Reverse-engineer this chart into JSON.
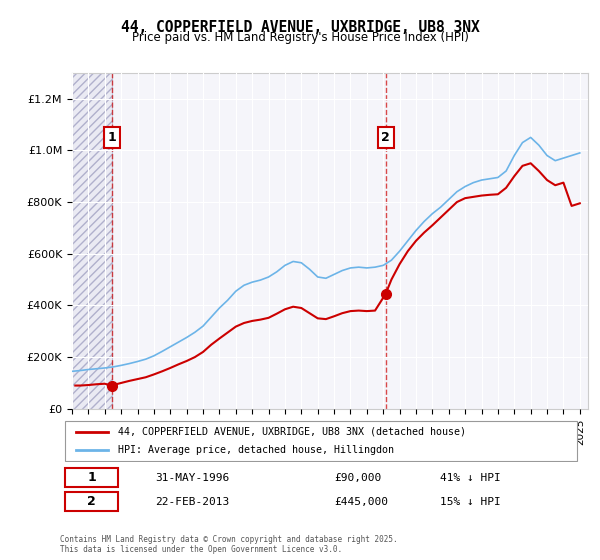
{
  "title": "44, COPPERFIELD AVENUE, UXBRIDGE, UB8 3NX",
  "subtitle": "Price paid vs. HM Land Registry's House Price Index (HPI)",
  "hpi_label": "HPI: Average price, detached house, Hillingdon",
  "property_label": "44, COPPERFIELD AVENUE, UXBRIDGE, UB8 3NX (detached house)",
  "transaction1": {
    "date": "31-MAY-1996",
    "price": 90000,
    "hpi_diff": "41% ↓ HPI"
  },
  "transaction2": {
    "date": "22-FEB-2013",
    "price": 445000,
    "hpi_diff": "15% ↓ HPI"
  },
  "hpi_color": "#6cb4e8",
  "price_color": "#cc0000",
  "dashed_line_color": "#cc0000",
  "annotation_box_color": "#cc0000",
  "background_plot": "#f0f0f8",
  "hatch_region_color": "#d8d8e8",
  "copyright_text": "Contains HM Land Registry data © Crown copyright and database right 2025.\nThis data is licensed under the Open Government Licence v3.0.",
  "ylim": [
    0,
    1300000
  ],
  "xlim_start": 1994.0,
  "xlim_end": 2025.5,
  "hpi_years": [
    1994.0,
    1994.5,
    1995.0,
    1995.5,
    1996.0,
    1996.5,
    1997.0,
    1997.5,
    1998.0,
    1998.5,
    1999.0,
    1999.5,
    2000.0,
    2000.5,
    2001.0,
    2001.5,
    2002.0,
    2002.5,
    2003.0,
    2003.5,
    2004.0,
    2004.5,
    2005.0,
    2005.5,
    2006.0,
    2006.5,
    2007.0,
    2007.5,
    2008.0,
    2008.5,
    2009.0,
    2009.5,
    2010.0,
    2010.5,
    2011.0,
    2011.5,
    2012.0,
    2012.5,
    2013.0,
    2013.5,
    2014.0,
    2014.5,
    2015.0,
    2015.5,
    2016.0,
    2016.5,
    2017.0,
    2017.5,
    2018.0,
    2018.5,
    2019.0,
    2019.5,
    2020.0,
    2020.5,
    2021.0,
    2021.5,
    2022.0,
    2022.5,
    2023.0,
    2023.5,
    2024.0,
    2024.5,
    2025.0
  ],
  "hpi_values": [
    145000,
    148000,
    152000,
    155000,
    158000,
    162000,
    168000,
    175000,
    183000,
    192000,
    205000,
    222000,
    240000,
    258000,
    276000,
    296000,
    320000,
    355000,
    390000,
    420000,
    455000,
    478000,
    490000,
    498000,
    510000,
    530000,
    555000,
    570000,
    565000,
    540000,
    510000,
    505000,
    520000,
    535000,
    545000,
    548000,
    545000,
    548000,
    555000,
    575000,
    610000,
    650000,
    690000,
    725000,
    755000,
    780000,
    810000,
    840000,
    860000,
    875000,
    885000,
    890000,
    895000,
    920000,
    980000,
    1030000,
    1050000,
    1020000,
    980000,
    960000,
    970000,
    980000,
    990000
  ],
  "price_years": [
    1994.2,
    1994.5,
    1995.0,
    1995.5,
    1996.0,
    1996.4,
    1997.0,
    1997.5,
    1998.0,
    1998.5,
    1999.0,
    1999.5,
    2000.0,
    2000.5,
    2001.0,
    2001.5,
    2002.0,
    2002.5,
    2003.0,
    2003.5,
    2004.0,
    2004.5,
    2005.0,
    2005.5,
    2006.0,
    2006.5,
    2007.0,
    2007.5,
    2008.0,
    2008.5,
    2009.0,
    2009.5,
    2010.0,
    2010.5,
    2011.0,
    2011.5,
    2012.0,
    2012.5,
    2013.15,
    2013.5,
    2014.0,
    2014.5,
    2015.0,
    2015.5,
    2016.0,
    2016.5,
    2017.0,
    2017.5,
    2018.0,
    2018.5,
    2019.0,
    2019.5,
    2020.0,
    2020.5,
    2021.0,
    2021.5,
    2022.0,
    2022.5,
    2023.0,
    2023.5,
    2024.0,
    2024.5,
    2025.0
  ],
  "price_values": [
    90000,
    90000,
    92000,
    95000,
    97000,
    90000,
    100000,
    108000,
    115000,
    122000,
    133000,
    145000,
    158000,
    172000,
    185000,
    200000,
    220000,
    248000,
    272000,
    295000,
    318000,
    332000,
    340000,
    345000,
    352000,
    368000,
    385000,
    395000,
    390000,
    370000,
    350000,
    347000,
    358000,
    370000,
    378000,
    380000,
    378000,
    380000,
    445000,
    500000,
    560000,
    610000,
    650000,
    682000,
    710000,
    740000,
    770000,
    800000,
    815000,
    820000,
    825000,
    828000,
    830000,
    855000,
    900000,
    940000,
    950000,
    920000,
    885000,
    865000,
    875000,
    785000,
    795000
  ],
  "transaction1_year": 1996.42,
  "transaction2_year": 2013.15,
  "xticks": [
    1994,
    1995,
    1996,
    1997,
    1998,
    1999,
    2000,
    2001,
    2002,
    2003,
    2004,
    2005,
    2006,
    2007,
    2008,
    2009,
    2010,
    2011,
    2012,
    2013,
    2014,
    2015,
    2016,
    2017,
    2018,
    2019,
    2020,
    2021,
    2022,
    2023,
    2024,
    2025
  ]
}
